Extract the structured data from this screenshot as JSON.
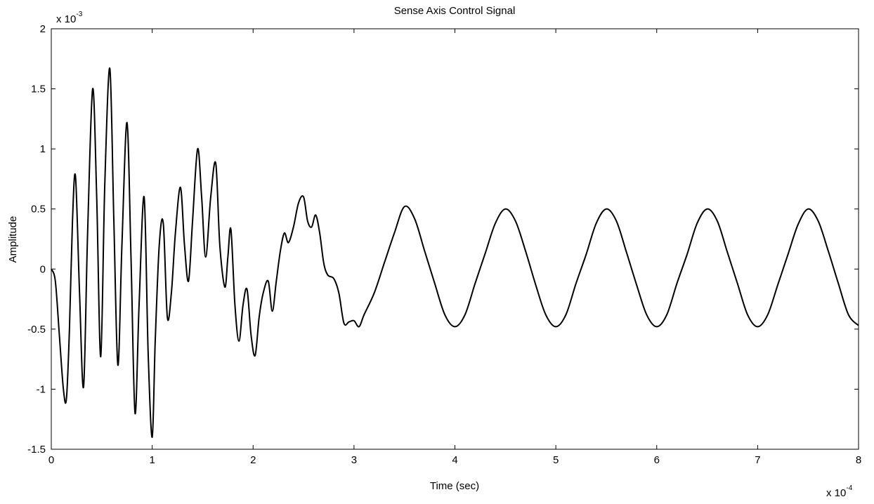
{
  "chart_data": {
    "type": "line",
    "title": "Sense Axis Control Signal",
    "xlabel": "Time (sec)",
    "ylabel": "Amplitude",
    "x_exponent": {
      "prefix": "x 10",
      "power": "-4"
    },
    "y_exponent": {
      "prefix": "x 10",
      "power": "-3"
    },
    "xlim": [
      0,
      8
    ],
    "ylim": [
      -1.5,
      2
    ],
    "x_ticks": [
      0,
      1,
      2,
      3,
      4,
      5,
      6,
      7,
      8
    ],
    "x_tick_labels": [
      "0",
      "1",
      "2",
      "3",
      "4",
      "5",
      "6",
      "7",
      "8"
    ],
    "y_ticks": [
      -1.5,
      -1,
      -0.5,
      0,
      0.5,
      1,
      1.5,
      2
    ],
    "y_tick_labels": [
      "-1.5",
      "-1",
      "-0.5",
      "0",
      "0.5",
      "1",
      "1.5",
      "2"
    ],
    "grid": false,
    "line_color": "#000000",
    "series": [
      {
        "x": [
          0,
          0.04,
          0.08,
          0.12,
          0.15,
          0.18,
          0.21,
          0.24,
          0.28,
          0.32,
          0.36,
          0.41,
          0.45,
          0.49,
          0.53,
          0.58,
          0.62,
          0.66,
          0.7,
          0.75,
          0.79,
          0.83,
          0.87,
          0.92,
          0.96,
          1.0,
          1.03,
          1.07,
          1.11,
          1.15,
          1.19,
          1.23,
          1.28,
          1.32,
          1.36,
          1.4,
          1.45,
          1.49,
          1.53,
          1.58,
          1.63,
          1.67,
          1.72,
          1.75,
          1.78,
          1.82,
          1.86,
          1.9,
          1.94,
          1.98,
          2.02,
          2.06,
          2.1,
          2.15,
          2.19,
          2.23,
          2.27,
          2.31,
          2.35,
          2.4,
          2.45,
          2.5,
          2.54,
          2.58,
          2.62,
          2.66,
          2.7,
          2.74,
          2.8,
          2.85,
          2.9,
          2.95,
          3.0,
          3.05,
          3.1,
          3.2,
          3.3,
          3.4,
          3.5,
          3.6,
          3.7,
          3.8,
          3.9,
          4.0,
          4.1,
          4.2,
          4.3,
          4.4,
          4.5,
          4.6,
          4.7,
          4.8,
          4.9,
          5.0,
          5.1,
          5.2,
          5.3,
          5.4,
          5.5,
          5.6,
          5.7,
          5.8,
          5.9,
          6.0,
          6.1,
          6.2,
          6.3,
          6.4,
          6.5,
          6.6,
          6.7,
          6.8,
          6.9,
          7.0,
          7.1,
          7.2,
          7.3,
          7.4,
          7.5,
          7.6,
          7.7,
          7.8,
          7.9,
          8.0
        ],
        "y": [
          0,
          -0.1,
          -0.55,
          -1.0,
          -1.08,
          -0.5,
          0.4,
          0.77,
          -0.2,
          -0.98,
          0.3,
          1.5,
          0.6,
          -0.73,
          0.7,
          1.67,
          0.4,
          -0.8,
          0.2,
          1.22,
          0.1,
          -1.2,
          -0.3,
          0.6,
          -0.7,
          -1.4,
          -0.6,
          0.2,
          0.38,
          -0.4,
          -0.2,
          0.3,
          0.68,
          0.2,
          -0.1,
          0.4,
          1.0,
          0.6,
          0.1,
          0.6,
          0.88,
          0.2,
          -0.15,
          0.1,
          0.33,
          -0.3,
          -0.6,
          -0.3,
          -0.17,
          -0.55,
          -0.72,
          -0.4,
          -0.2,
          -0.1,
          -0.35,
          -0.1,
          0.15,
          0.3,
          0.22,
          0.35,
          0.55,
          0.6,
          0.4,
          0.35,
          0.45,
          0.3,
          0.05,
          -0.05,
          -0.08,
          -0.2,
          -0.45,
          -0.44,
          -0.43,
          -0.48,
          -0.38,
          -0.2,
          0.05,
          0.3,
          0.52,
          0.42,
          0.15,
          -0.12,
          -0.38,
          -0.48,
          -0.38,
          -0.12,
          0.13,
          0.38,
          0.5,
          0.4,
          0.15,
          -0.13,
          -0.38,
          -0.48,
          -0.38,
          -0.12,
          0.12,
          0.38,
          0.5,
          0.4,
          0.14,
          -0.13,
          -0.38,
          -0.48,
          -0.38,
          -0.12,
          0.12,
          0.38,
          0.5,
          0.4,
          0.14,
          -0.12,
          -0.38,
          -0.48,
          -0.38,
          -0.13,
          0.12,
          0.37,
          0.5,
          0.4,
          0.15,
          -0.12,
          -0.38,
          -0.47
        ]
      }
    ]
  }
}
